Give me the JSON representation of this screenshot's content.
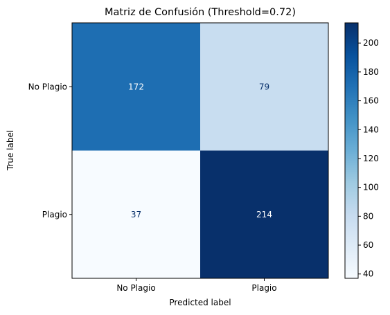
{
  "chart_data": {
    "type": "heatmap",
    "title": "Matriz de Confusión (Threshold=0.72)",
    "xlabel": "Predicted label",
    "ylabel": "True label",
    "x_categories": [
      "No Plagio",
      "Plagio"
    ],
    "y_categories": [
      "No Plagio",
      "Plagio"
    ],
    "values": [
      [
        172,
        79
      ],
      [
        37,
        214
      ]
    ],
    "colormap": "Blues",
    "colorbar": {
      "min": 37,
      "max": 214,
      "ticks": [
        40,
        60,
        80,
        100,
        120,
        140,
        160,
        180,
        200
      ]
    }
  },
  "colors": {
    "text_dark": "#08306b",
    "text_light": "#ffffff"
  }
}
